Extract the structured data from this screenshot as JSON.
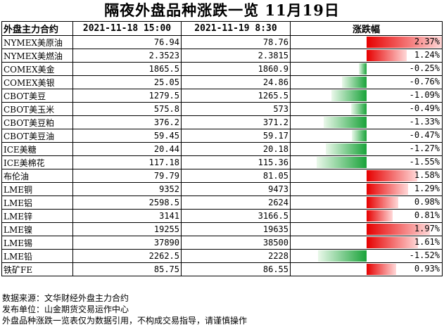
{
  "title": "隔夜外盘品种涨跌一览 11月19日",
  "chart_data": {
    "type": "table",
    "columns": [
      "外盘主力合约",
      "2021-11-18 15:00",
      "2021-11-19 8:30",
      "涨跌幅"
    ],
    "rows": [
      {
        "name": "NYMEX美原油",
        "prev": "76.94",
        "curr": "78.76",
        "change_text": "2.37%",
        "change": 2.37
      },
      {
        "name": "NYMEX美燃油",
        "prev": "2.3523",
        "curr": "2.3815",
        "change_text": "1.24%",
        "change": 1.24
      },
      {
        "name": "COMEX美金",
        "prev": "1865.5",
        "curr": "1860.9",
        "change_text": "-0.25%",
        "change": -0.25
      },
      {
        "name": "COMEX美银",
        "prev": "25.05",
        "curr": "24.86",
        "change_text": "-0.76%",
        "change": -0.76
      },
      {
        "name": "CBOT美豆",
        "prev": "1279.5",
        "curr": "1265.5",
        "change_text": "-1.09%",
        "change": -1.09
      },
      {
        "name": "CBOT美玉米",
        "prev": "575.8",
        "curr": "573",
        "change_text": "-0.49%",
        "change": -0.49
      },
      {
        "name": "CBOT美豆粕",
        "prev": "376.2",
        "curr": "371.2",
        "change_text": "-1.33%",
        "change": -1.33
      },
      {
        "name": "CBOT美豆油",
        "prev": "59.45",
        "curr": "59.17",
        "change_text": "-0.47%",
        "change": -0.47
      },
      {
        "name": "ICE美糖",
        "prev": "20.44",
        "curr": "20.18",
        "change_text": "-1.27%",
        "change": -1.27
      },
      {
        "name": "ICE美棉花",
        "prev": "117.18",
        "curr": "115.36",
        "change_text": "-1.55%",
        "change": -1.55
      },
      {
        "name": "布伦油",
        "prev": "79.79",
        "curr": "81.05",
        "change_text": "1.58%",
        "change": 1.58
      },
      {
        "name": "LME铜",
        "prev": "9352",
        "curr": "9473",
        "change_text": "1.29%",
        "change": 1.29
      },
      {
        "name": "LME铝",
        "prev": "2598.5",
        "curr": "2624",
        "change_text": "0.98%",
        "change": 0.98
      },
      {
        "name": "LME锌",
        "prev": "3141",
        "curr": "3166.5",
        "change_text": "0.81%",
        "change": 0.81
      },
      {
        "name": "LME镍",
        "prev": "19255",
        "curr": "19635",
        "change_text": "1.97%",
        "change": 1.97
      },
      {
        "name": "LME锡",
        "prev": "37890",
        "curr": "38500",
        "change_text": "1.61%",
        "change": 1.61
      },
      {
        "name": "LME铅",
        "prev": "2262.5",
        "curr": "2228",
        "change_text": "-1.52%",
        "change": -1.52
      },
      {
        "name": "铁矿FE",
        "prev": "85.75",
        "curr": "86.55",
        "change_text": "0.93%",
        "change": 0.93
      }
    ],
    "colors": {
      "positive": "#e60000",
      "negative": "#1aa33a"
    }
  },
  "footer": [
    "数据来源：文华财经外盘主力合约",
    "发布单位：山金期货交易运作中心",
    "外盘品种涨跌一览表仅为数据引用，不构成交易指导，请谨慎操作"
  ]
}
